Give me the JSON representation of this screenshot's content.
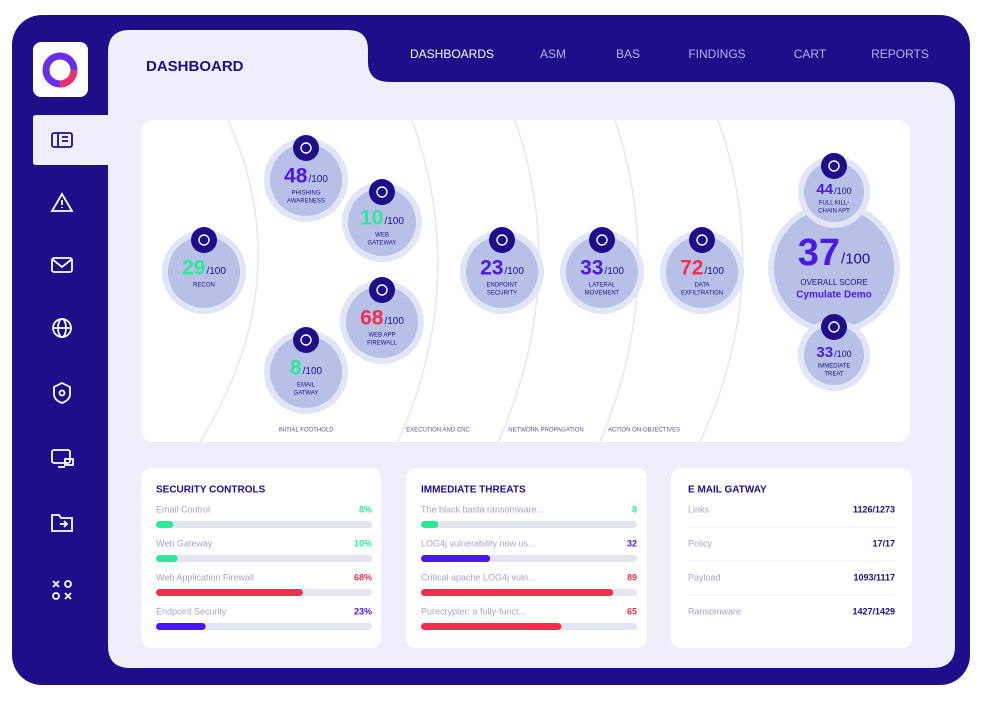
{
  "header": {
    "title": "DASHBOARD"
  },
  "nav": [
    "DASHBOARDS",
    "ASM",
    "BAS",
    "FINDINGS",
    "CART",
    "REPORTS"
  ],
  "killchain": {
    "nodes": [
      {
        "score": 29,
        "suffix": "/100",
        "label": [
          "RECON"
        ],
        "color": "#2ee89a"
      },
      {
        "score": 48,
        "suffix": "/100",
        "label": [
          "PHISHING",
          "AWARENESS"
        ],
        "color": "#4b19e6"
      },
      {
        "score": 10,
        "suffix": "/100",
        "label": [
          "WEB",
          "GATEWAY"
        ],
        "color": "#2ee89a"
      },
      {
        "score": 68,
        "suffix": "/100",
        "label": [
          "WEB APP",
          "FIREWALL"
        ],
        "color": "#f0304f"
      },
      {
        "score": 8,
        "suffix": "/100",
        "label": [
          "EMAIL",
          "GATWAY"
        ],
        "color": "#2ee89a"
      },
      {
        "score": 23,
        "suffix": "/100",
        "label": [
          "ENDPOINT",
          "SECURITY"
        ],
        "color": "#4b19e6"
      },
      {
        "score": 33,
        "suffix": "/100",
        "label": [
          "LATERAL",
          "MOVEMENT"
        ],
        "color": "#4b19e6"
      },
      {
        "score": 72,
        "suffix": "/100",
        "label": [
          "DATA",
          "EXFILTRATION"
        ],
        "color": "#f0304f"
      },
      {
        "score": 44,
        "suffix": "/100",
        "label": [
          "FULL KILL-",
          "CHAIN APT"
        ],
        "color": "#4b19e6"
      },
      {
        "score": 33,
        "suffix": "/100",
        "label": [
          "IMMEDIATE",
          "TREAT"
        ],
        "color": "#4b19e6"
      }
    ],
    "overall": {
      "score": 37,
      "suffix": "/100",
      "label": "OVERALL SCORE",
      "name": "Cymulate Demo",
      "color": "#4b19e6"
    },
    "stages": [
      "INITIAL FOOTHOLD",
      "EXECUTION AND CNC",
      "NETWORK PROPAGATION",
      "ACTION ON OBJECTIVES"
    ]
  },
  "panels": [
    {
      "title": "SECURITY CONTROLS",
      "rows": [
        {
          "label": "Email Control",
          "value": 8,
          "value_label": "8%",
          "color": "#2ee89a"
        },
        {
          "label": "Web Gateway",
          "value": 10,
          "value_label": "10%",
          "color": "#2ee89a"
        },
        {
          "label": "Web Application Firewall",
          "value": 68,
          "value_label": "68%",
          "color": "#f0304f"
        },
        {
          "label": "Endpoint Security",
          "value": 23,
          "value_label": "23%",
          "color": "#4b19e6"
        }
      ]
    },
    {
      "title": "IMMEDIATE THREATS",
      "rows": [
        {
          "label": "The black basta ransomware...",
          "value": 8,
          "color": "#2ee89a"
        },
        {
          "label": "LOG4j vulnerability now us...",
          "value": 32,
          "color": "#4b19e6"
        },
        {
          "label": "Critical apache LOG4j vuln...",
          "value": 89,
          "color": "#f0304f"
        },
        {
          "label": "Purecrypter: a fully-funct...",
          "value": 65,
          "color": "#f0304f"
        }
      ]
    }
  ],
  "email_gatway": {
    "title": "E MAIL GATWAY",
    "rows": [
      {
        "label": "Links",
        "value": "1126/1273"
      },
      {
        "label": "Policy",
        "value": "17/17"
      },
      {
        "label": "Payload",
        "value": "1093/1117"
      },
      {
        "label": "Ransomware",
        "value": "1427/1429"
      }
    ]
  }
}
